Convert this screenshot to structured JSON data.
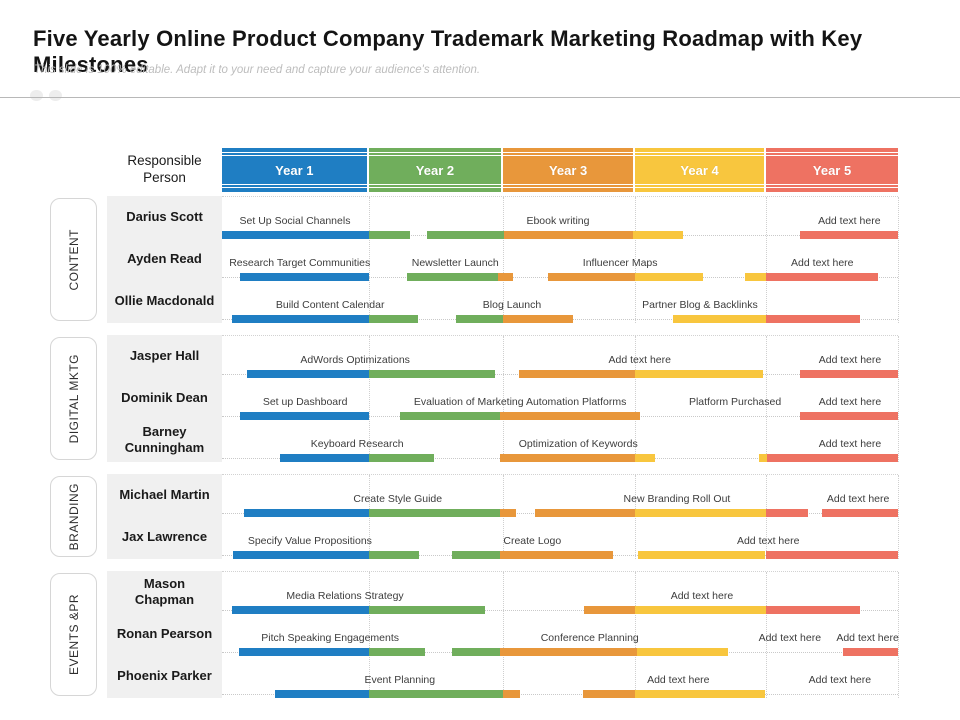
{
  "title": "Five Yearly Online Product Company Trademark Marketing Roadmap with Key Milestones",
  "subtitle": "This slide is 100% editable. Adapt it to your need and capture your audience's attention.",
  "header": {
    "responsible_label": "Responsible Person",
    "years": [
      "Year 1",
      "Year 2",
      "Year 3",
      "Year 4",
      "Year 5"
    ],
    "year_widths_pct": [
      21.7,
      19.9,
      19.5,
      19.4,
      19.5
    ]
  },
  "colors": {
    "blue": "#1f7ec3",
    "green": "#70ae5c",
    "orange": "#e8973b",
    "yellow": "#f8c63e",
    "red": "#ee7262"
  },
  "chart_data": {
    "type": "table",
    "chart_kind": "gantt-roadmap",
    "title": "Five Yearly Online Product Company Trademark Marketing Roadmap with Key Milestones",
    "x_categories": [
      "Year 1",
      "Year 2",
      "Year 3",
      "Year 4",
      "Year 5"
    ],
    "column_boundaries_pct": [
      0,
      21.7,
      41.6,
      61.1,
      80.5,
      100
    ],
    "legend": "segment color indicates the year band the activity falls in (blue=Y1, green=Y2, orange=Y3, yellow=Y4, red=Y5)",
    "sections": [
      {
        "label": "CONTENT",
        "rows": [
          {
            "name": "Darius Scott",
            "labels": [
              {
                "text": "Set Up Social Channels",
                "center": 10.8
              },
              {
                "text": "Ebook writing",
                "center": 49.7
              },
              {
                "text": "Add text here",
                "center": 92.8
              }
            ],
            "segments": [
              {
                "c": "blue",
                "l": 0,
                "w": 21.7
              },
              {
                "c": "green",
                "l": 21.7,
                "w": 6.1
              },
              {
                "c": "green",
                "l": 30.3,
                "w": 11.4
              },
              {
                "c": "orange",
                "l": 41.7,
                "w": 19.1
              },
              {
                "c": "yellow",
                "l": 60.8,
                "w": 7.4
              },
              {
                "c": "red",
                "l": 85.5,
                "w": 14.5
              }
            ]
          },
          {
            "name": "Ayden Read",
            "labels": [
              {
                "text": "Research Target Communities",
                "center": 11.5
              },
              {
                "text": "Newsletter Launch",
                "center": 34.5
              },
              {
                "text": "Influencer Maps",
                "center": 58.9
              },
              {
                "text": "Add text here",
                "center": 88.8
              }
            ],
            "segments": [
              {
                "c": "blue",
                "l": 2.7,
                "w": 19.0
              },
              {
                "c": "green",
                "l": 27.4,
                "w": 13.4
              },
              {
                "c": "orange",
                "l": 40.8,
                "w": 2.2
              },
              {
                "c": "orange",
                "l": 48.2,
                "w": 12.9
              },
              {
                "c": "yellow",
                "l": 61.1,
                "w": 10.0
              },
              {
                "c": "yellow",
                "l": 77.4,
                "w": 3.1
              },
              {
                "c": "red",
                "l": 80.5,
                "w": 16.5
              }
            ]
          },
          {
            "name": "Ollie Macdonald",
            "labels": [
              {
                "text": "Build Content Calendar",
                "center": 16.0
              },
              {
                "text": "Blog Launch",
                "center": 42.9
              },
              {
                "text": "Partner Blog & Backlinks",
                "center": 70.7
              }
            ],
            "segments": [
              {
                "c": "blue",
                "l": 1.5,
                "w": 20.2
              },
              {
                "c": "green",
                "l": 21.7,
                "w": 7.3
              },
              {
                "c": "green",
                "l": 34.6,
                "w": 7.0
              },
              {
                "c": "orange",
                "l": 41.6,
                "w": 10.3
              },
              {
                "c": "yellow",
                "l": 66.7,
                "w": 13.8
              },
              {
                "c": "red",
                "l": 80.5,
                "w": 13.9
              }
            ]
          }
        ]
      },
      {
        "label": "DIGITAL MKTG",
        "rows": [
          {
            "name": "Jasper Hall",
            "labels": [
              {
                "text": "AdWords Optimizations",
                "center": 19.7
              },
              {
                "text": "Add text here",
                "center": 61.8
              },
              {
                "text": "Add text here",
                "center": 92.9
              }
            ],
            "segments": [
              {
                "c": "blue",
                "l": 3.7,
                "w": 18.0
              },
              {
                "c": "green",
                "l": 21.7,
                "w": 18.7
              },
              {
                "c": "orange",
                "l": 43.9,
                "w": 17.2
              },
              {
                "c": "yellow",
                "l": 61.1,
                "w": 18.9
              },
              {
                "c": "red",
                "l": 85.5,
                "w": 14.5
              }
            ]
          },
          {
            "name": "Dominik Dean",
            "labels": [
              {
                "text": "Set up Dashboard",
                "center": 12.3
              },
              {
                "text": "Evaluation of Marketing Automation Platforms",
                "center": 44.1
              },
              {
                "text": "Platform Purchased",
                "center": 75.9
              },
              {
                "text": "Add text here",
                "center": 92.9
              }
            ],
            "segments": [
              {
                "c": "blue",
                "l": 2.7,
                "w": 19.0
              },
              {
                "c": "green",
                "l": 26.3,
                "w": 14.8
              },
              {
                "c": "orange",
                "l": 41.1,
                "w": 20.7
              },
              {
                "c": "red",
                "l": 85.5,
                "w": 14.5
              }
            ]
          },
          {
            "name": "Barney\nCunningham",
            "labels": [
              {
                "text": "Keyboard Research",
                "center": 20.0
              },
              {
                "text": "Optimization of Keywords",
                "center": 52.7
              },
              {
                "text": "Add text here",
                "center": 92.9
              }
            ],
            "segments": [
              {
                "c": "blue",
                "l": 8.6,
                "w": 13.2
              },
              {
                "c": "green",
                "l": 21.7,
                "w": 9.6
              },
              {
                "c": "orange",
                "l": 41.1,
                "w": 20.0
              },
              {
                "c": "yellow",
                "l": 61.1,
                "w": 3.0
              },
              {
                "c": "yellow",
                "l": 79.4,
                "w": 1.2
              },
              {
                "c": "red",
                "l": 80.6,
                "w": 19.4
              }
            ]
          }
        ]
      },
      {
        "label": "BRANDING",
        "rows": [
          {
            "name": "Michael Martin",
            "labels": [
              {
                "text": "Create Style Guide",
                "center": 26.0
              },
              {
                "text": "New Branding Roll Out",
                "center": 67.3
              },
              {
                "text": "Add text here",
                "center": 94.1
              }
            ],
            "segments": [
              {
                "c": "blue",
                "l": 3.3,
                "w": 18.5
              },
              {
                "c": "green",
                "l": 21.7,
                "w": 19.4
              },
              {
                "c": "orange",
                "l": 41.1,
                "w": 2.4
              },
              {
                "c": "orange",
                "l": 46.3,
                "w": 14.8
              },
              {
                "c": "yellow",
                "l": 61.1,
                "w": 19.4
              },
              {
                "c": "red",
                "l": 80.5,
                "w": 6.2
              },
              {
                "c": "red",
                "l": 88.8,
                "w": 11.2
              }
            ]
          },
          {
            "name": "Jax Lawrence",
            "labels": [
              {
                "text": "Specify Value Propositions",
                "center": 13.0
              },
              {
                "text": "Create Logo",
                "center": 45.9
              },
              {
                "text": "Add text here",
                "center": 80.8
              }
            ],
            "segments": [
              {
                "c": "blue",
                "l": 1.6,
                "w": 20.1
              },
              {
                "c": "green",
                "l": 21.7,
                "w": 7.5
              },
              {
                "c": "green",
                "l": 34.0,
                "w": 7.1
              },
              {
                "c": "orange",
                "l": 41.1,
                "w": 16.7
              },
              {
                "c": "yellow",
                "l": 61.5,
                "w": 18.9
              },
              {
                "c": "red",
                "l": 80.5,
                "w": 19.5
              }
            ]
          }
        ]
      },
      {
        "label": "EVENTS &PR",
        "rows": [
          {
            "name": "Mason\nChapman",
            "labels": [
              {
                "text": "Media Relations Strategy",
                "center": 18.2
              },
              {
                "text": "Add text here",
                "center": 71.0
              }
            ],
            "segments": [
              {
                "c": "blue",
                "l": 1.5,
                "w": 20.3
              },
              {
                "c": "green",
                "l": 21.7,
                "w": 17.2
              },
              {
                "c": "orange",
                "l": 53.6,
                "w": 7.5
              },
              {
                "c": "yellow",
                "l": 61.1,
                "w": 19.4
              },
              {
                "c": "red",
                "l": 80.5,
                "w": 13.9
              }
            ]
          },
          {
            "name": "Ronan Pearson",
            "labels": [
              {
                "text": "Pitch Speaking Engagements",
                "center": 16.0
              },
              {
                "text": "Conference Planning",
                "center": 54.4
              },
              {
                "text": "Add text here",
                "center": 84.0
              },
              {
                "text": "Add text here",
                "center": 95.5
              }
            ],
            "segments": [
              {
                "c": "blue",
                "l": 2.5,
                "w": 19.2
              },
              {
                "c": "green",
                "l": 21.7,
                "w": 8.3
              },
              {
                "c": "green",
                "l": 34.0,
                "w": 7.1
              },
              {
                "c": "orange",
                "l": 41.1,
                "w": 20.3
              },
              {
                "c": "yellow",
                "l": 61.4,
                "w": 13.5
              },
              {
                "c": "red",
                "l": 91.9,
                "w": 8.1
              }
            ]
          },
          {
            "name": "Phoenix Parker",
            "labels": [
              {
                "text": "Event Planning",
                "center": 26.3
              },
              {
                "text": "Add text here",
                "center": 67.5
              },
              {
                "text": "Add text here",
                "center": 91.4
              }
            ],
            "segments": [
              {
                "c": "blue",
                "l": 7.8,
                "w": 13.9
              },
              {
                "c": "green",
                "l": 21.7,
                "w": 19.9
              },
              {
                "c": "orange",
                "l": 41.6,
                "w": 2.5
              },
              {
                "c": "orange",
                "l": 53.4,
                "w": 7.7
              },
              {
                "c": "yellow",
                "l": 61.1,
                "w": 19.2
              }
            ]
          }
        ]
      }
    ]
  }
}
